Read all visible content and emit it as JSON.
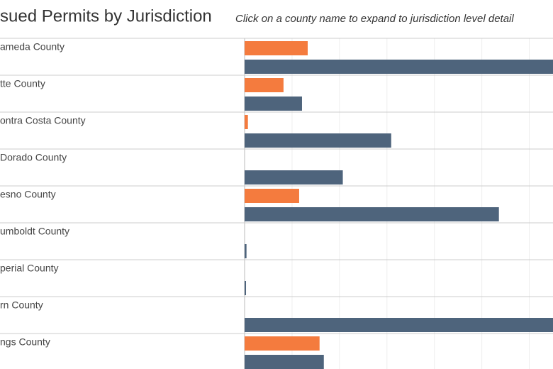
{
  "chart_data": {
    "type": "bar",
    "title": "sued Permits by Jurisdiction",
    "subtitle": "Click on a county name to expand to jurisdiction level detail",
    "categories": [
      "ameda County",
      "tte County",
      "ontra Costa County",
      "Dorado County",
      "esno County",
      "umboldt County",
      "perial County",
      "rn County",
      "ngs County"
    ],
    "series": [
      {
        "color": "#f47b3e",
        "values": [
          1.33,
          0.82,
          0.07,
          0,
          1.15,
          0,
          0,
          0,
          1.58
        ]
      },
      {
        "color": "#4e647c",
        "values": [
          6.8,
          1.21,
          3.09,
          2.07,
          5.36,
          0.04,
          0.03,
          6.8,
          1.67
        ]
      }
    ],
    "xlim": [
      0,
      6.5
    ],
    "xticks": [
      0,
      1,
      2,
      3,
      4,
      5,
      6
    ],
    "grid": true
  }
}
